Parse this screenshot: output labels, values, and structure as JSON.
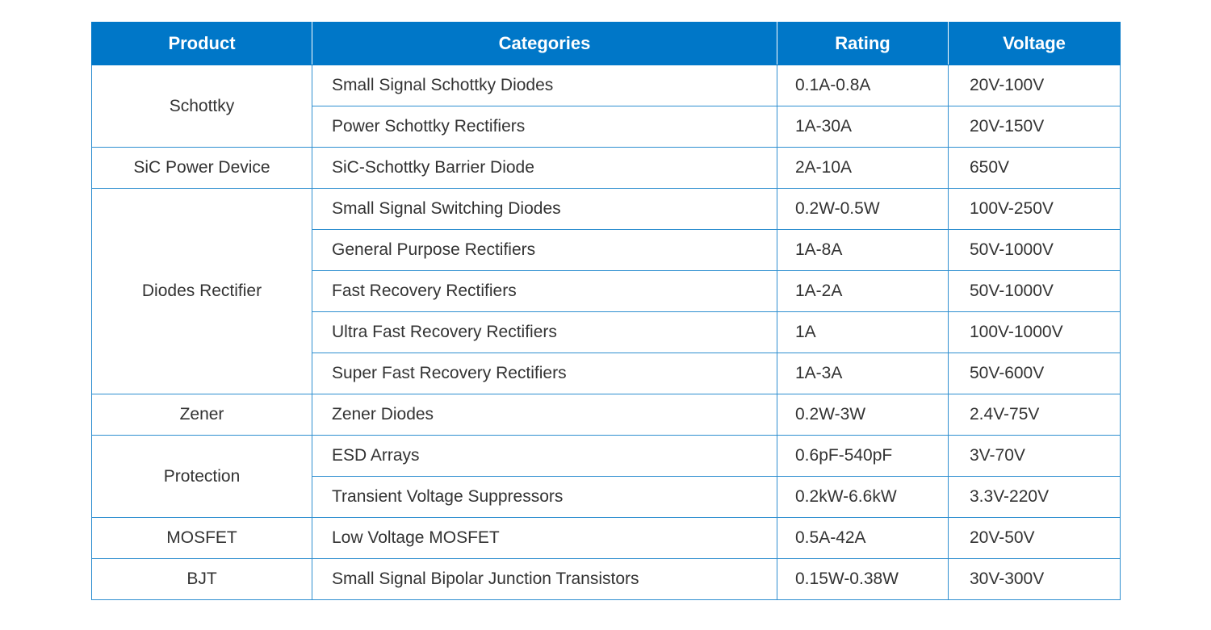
{
  "table": {
    "headers": {
      "product": "Product",
      "categories": "Categories",
      "rating": "Rating",
      "voltage": "Voltage"
    },
    "header_color": "#0077c8",
    "border_color": "#2f8fd0",
    "groups": [
      {
        "product": "Schottky",
        "rows": [
          {
            "category": "Small Signal Schottky Diodes",
            "rating": "0.1A-0.8A",
            "voltage": "20V-100V"
          },
          {
            "category": "Power Schottky Rectifiers",
            "rating": "1A-30A",
            "voltage": "20V-150V"
          }
        ]
      },
      {
        "product": "SiC Power Device",
        "rows": [
          {
            "category": "SiC-Schottky Barrier Diode",
            "rating": "2A-10A",
            "voltage": "650V"
          }
        ]
      },
      {
        "product": "Diodes Rectifier",
        "rows": [
          {
            "category": "Small Signal Switching Diodes",
            "rating": "0.2W-0.5W",
            "voltage": "100V-250V"
          },
          {
            "category": "General Purpose Rectifiers",
            "rating": "1A-8A",
            "voltage": "50V-1000V"
          },
          {
            "category": "Fast Recovery Rectifiers",
            "rating": "1A-2A",
            "voltage": "50V-1000V"
          },
          {
            "category": "Ultra Fast Recovery Rectifiers",
            "rating": "1A",
            "voltage": "100V-1000V"
          },
          {
            "category": "Super Fast Recovery Rectifiers",
            "rating": "1A-3A",
            "voltage": "50V-600V"
          }
        ]
      },
      {
        "product": "Zener",
        "rows": [
          {
            "category": "Zener Diodes",
            "rating": "0.2W-3W",
            "voltage": "2.4V-75V"
          }
        ]
      },
      {
        "product": "Protection",
        "rows": [
          {
            "category": "ESD Arrays",
            "rating": "0.6pF-540pF",
            "voltage": "3V-70V"
          },
          {
            "category": "Transient Voltage Suppressors",
            "rating": "0.2kW-6.6kW",
            "voltage": "3.3V-220V"
          }
        ]
      },
      {
        "product": "MOSFET",
        "rows": [
          {
            "category": "Low Voltage MOSFET",
            "rating": "0.5A-42A",
            "voltage": "20V-50V"
          }
        ]
      },
      {
        "product": "BJT",
        "rows": [
          {
            "category": "Small Signal Bipolar Junction Transistors",
            "rating": "0.15W-0.38W",
            "voltage": "30V-300V"
          }
        ]
      }
    ]
  }
}
